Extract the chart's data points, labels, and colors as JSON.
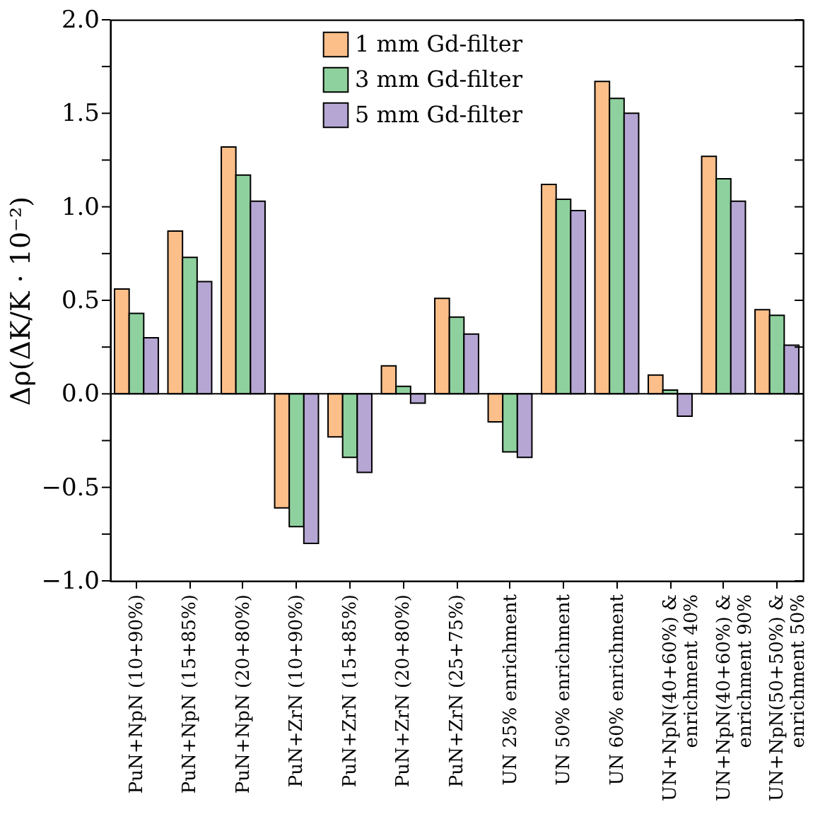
{
  "chart_data": {
    "type": "bar",
    "ylabel": "Δρ(ΔK/K · 10⁻²)",
    "categories": [
      "PuN+NpN (10+90%)",
      "PuN+NpN (15+85%)",
      "PuN+NpN (20+80%)",
      "PuN+ZrN (10+90%)",
      "PuN+ZrN (15+85%)",
      "PuN+ZrN (20+80%)",
      "PuN+ZrN (25+75%)",
      "UN 25% enrichment",
      "UN 50% enrichment",
      "UN 60% enrichment",
      "UN+NpN(40+60%) &\nenrichment 40%",
      "UN+NpN(40+60%) &\nenrichment 90%",
      "UN+NpN(50+50%) &\nenrichment 50%"
    ],
    "series": [
      {
        "name": "1 mm Gd-filter",
        "color": "#fdbf8a",
        "values": [
          0.56,
          0.87,
          1.32,
          -0.61,
          -0.23,
          0.15,
          0.51,
          -0.15,
          1.12,
          1.67,
          0.1,
          1.27,
          0.45
        ]
      },
      {
        "name": "3 mm Gd-filter",
        "color": "#8fd19e",
        "values": [
          0.43,
          0.73,
          1.17,
          -0.71,
          -0.34,
          0.04,
          0.41,
          -0.31,
          1.04,
          1.58,
          0.02,
          1.15,
          0.42
        ]
      },
      {
        "name": "5 mm Gd-filter",
        "color": "#b5a6d4",
        "values": [
          0.3,
          0.6,
          1.03,
          -0.8,
          -0.42,
          -0.05,
          0.32,
          -0.34,
          0.98,
          1.5,
          -0.12,
          1.03,
          0.26
        ]
      }
    ],
    "ylim": [
      -1.0,
      2.0
    ],
    "yticks": [
      {
        "value": -1.0,
        "label": "−1.0"
      },
      {
        "value": -0.75,
        "label": null
      },
      {
        "value": -0.5,
        "label": "−0.5"
      },
      {
        "value": -0.25,
        "label": null
      },
      {
        "value": 0,
        "label": "0.0"
      },
      {
        "value": 0.25,
        "label": null
      },
      {
        "value": 0.5,
        "label": "0.5"
      },
      {
        "value": 0.75,
        "label": null
      },
      {
        "value": 1.0,
        "label": "1.0"
      },
      {
        "value": 1.25,
        "label": null
      },
      {
        "value": 1.5,
        "label": "1.5"
      },
      {
        "value": 1.75,
        "label": null
      },
      {
        "value": 2.0,
        "label": "2.0"
      }
    ],
    "ref_lines": [
      {
        "axis": "y",
        "value": 0
      }
    ],
    "legend": "top",
    "grid": false
  }
}
